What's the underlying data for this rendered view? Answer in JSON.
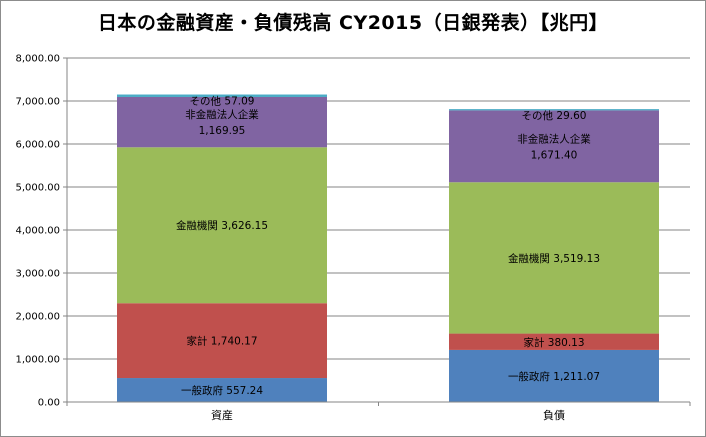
{
  "chart_data": {
    "type": "bar",
    "stacked": true,
    "title": "日本の金融資産・負債残高 CY2015（日銀発表）【兆円】",
    "categories": [
      "資産",
      "負債"
    ],
    "ylim": [
      0,
      8000
    ],
    "yticks": [
      0,
      1000,
      2000,
      3000,
      4000,
      5000,
      6000,
      7000,
      8000
    ],
    "ytick_labels": [
      "0.00",
      "1,000.00",
      "2,000.00",
      "3,000.00",
      "4,000.00",
      "5,000.00",
      "6,000.00",
      "7,000.00",
      "8,000.00"
    ],
    "grid": true,
    "legend": "none",
    "series": [
      {
        "label": "一般政府",
        "color": "#4f81bd",
        "values": [
          557.24,
          1211.07
        ],
        "value_labels": [
          "557.24",
          "1,211.07"
        ]
      },
      {
        "label": "家計",
        "color": "#c0504d",
        "values": [
          1740.17,
          380.13
        ],
        "value_labels": [
          "1,740.17",
          "380.13"
        ]
      },
      {
        "label": "金融機関",
        "color": "#9bbb59",
        "values": [
          3626.15,
          3519.13
        ],
        "value_labels": [
          "3,626.15",
          "3,519.13"
        ]
      },
      {
        "label": "非金融法人企業",
        "color": "#8064a2",
        "values": [
          1169.95,
          1671.4
        ],
        "value_labels": [
          "1,169.95",
          "1,671.40"
        ]
      },
      {
        "label": "その他",
        "color": "#4bacc6",
        "values": [
          57.09,
          29.6
        ],
        "value_labels": [
          "57.09",
          "29.60"
        ]
      }
    ]
  }
}
